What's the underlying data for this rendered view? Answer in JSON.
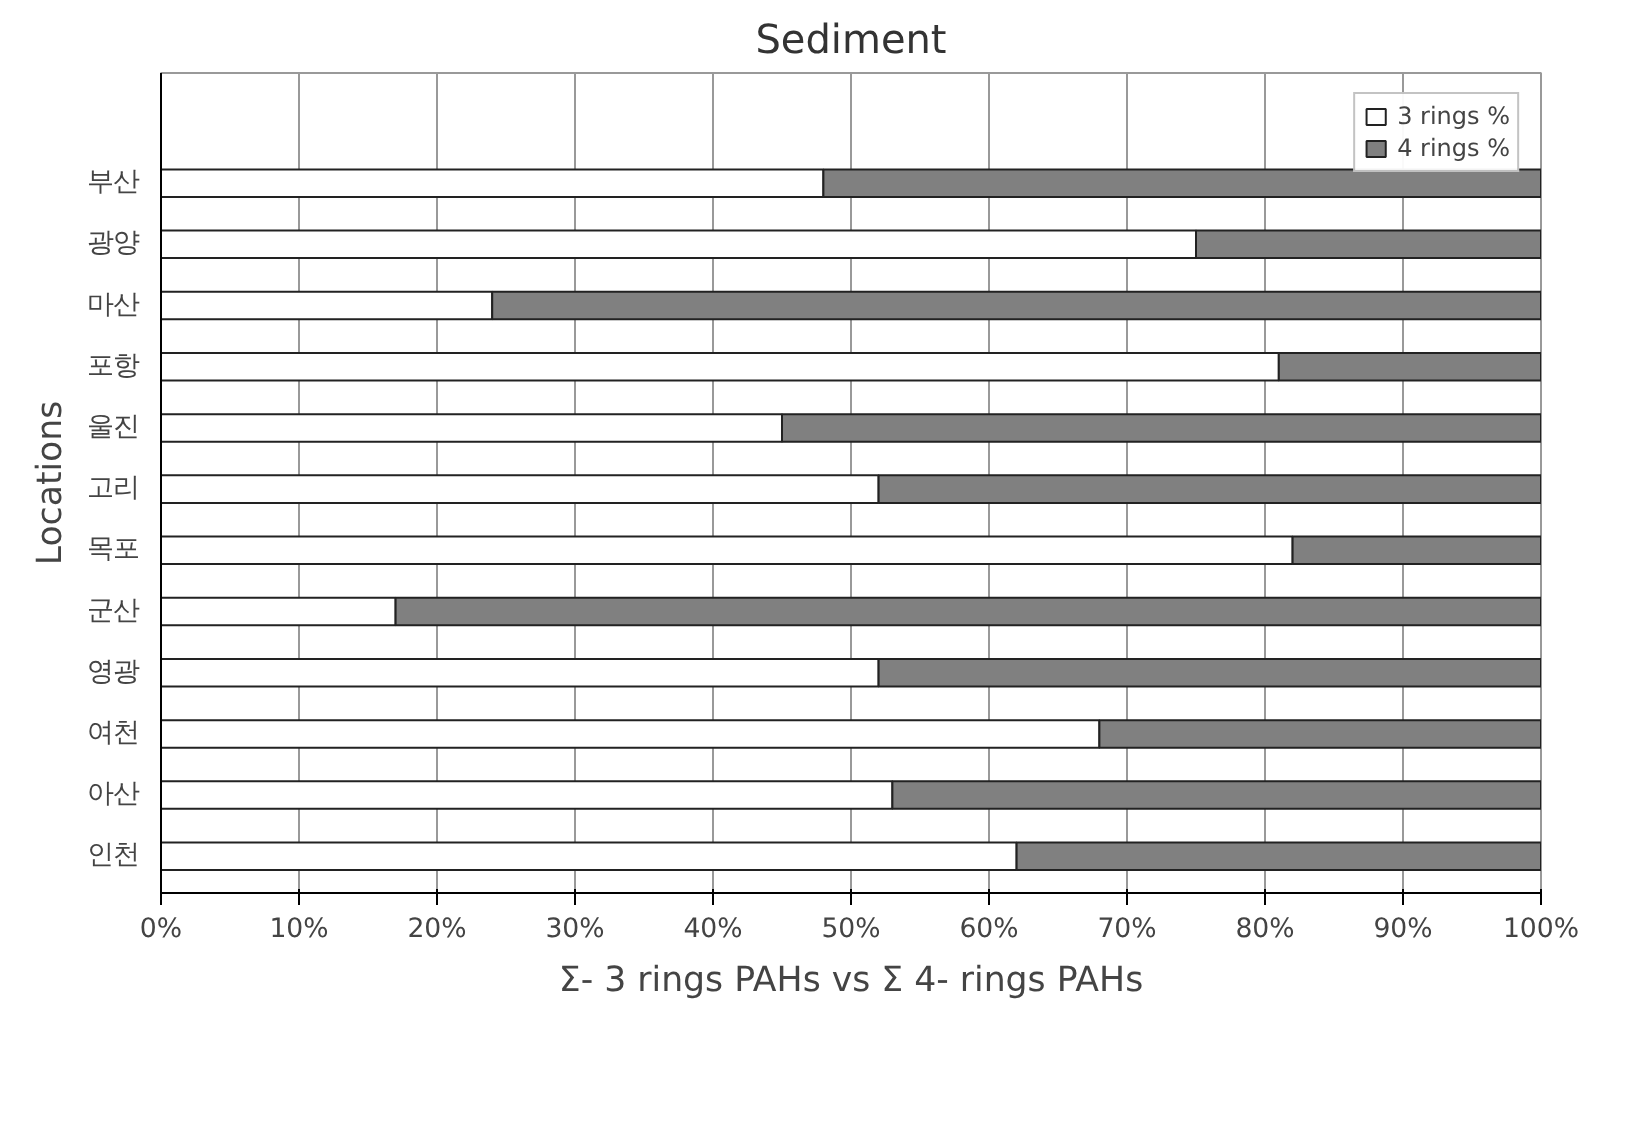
{
  "chart_data": {
    "type": "bar",
    "orientation": "horizontal",
    "stacked": true,
    "title": "Sediment",
    "xlabel": "Σ- 3 rings PAHs vs Σ 4- rings PAHs",
    "ylabel": "Locations",
    "categories": [
      "부산",
      "광양",
      "마산",
      "포항",
      "울진",
      "고리",
      "목포",
      "군산",
      "영광",
      "여천",
      "아산",
      "인천"
    ],
    "series": [
      {
        "name": "3 rings %",
        "color": "#ffffff",
        "values": [
          48,
          75,
          24,
          81,
          45,
          52,
          82,
          17,
          52,
          68,
          53,
          62
        ]
      },
      {
        "name": "4 rings %",
        "color": "#808080",
        "values": [
          52,
          25,
          76,
          19,
          55,
          48,
          18,
          83,
          48,
          32,
          47,
          38
        ]
      }
    ],
    "xlim": [
      0,
      100
    ],
    "xticks": [
      {
        "value": 0,
        "label": "0%"
      },
      {
        "value": 10,
        "label": "10%"
      },
      {
        "value": 20,
        "label": "20%"
      },
      {
        "value": 30,
        "label": "30%"
      },
      {
        "value": 40,
        "label": "40%"
      },
      {
        "value": 50,
        "label": "50%"
      },
      {
        "value": 60,
        "label": "60%"
      },
      {
        "value": 70,
        "label": "70%"
      },
      {
        "value": 80,
        "label": "80%"
      },
      {
        "value": 90,
        "label": "90%"
      },
      {
        "value": 100,
        "label": "100%"
      }
    ],
    "grid": "x",
    "legend": "top right"
  }
}
